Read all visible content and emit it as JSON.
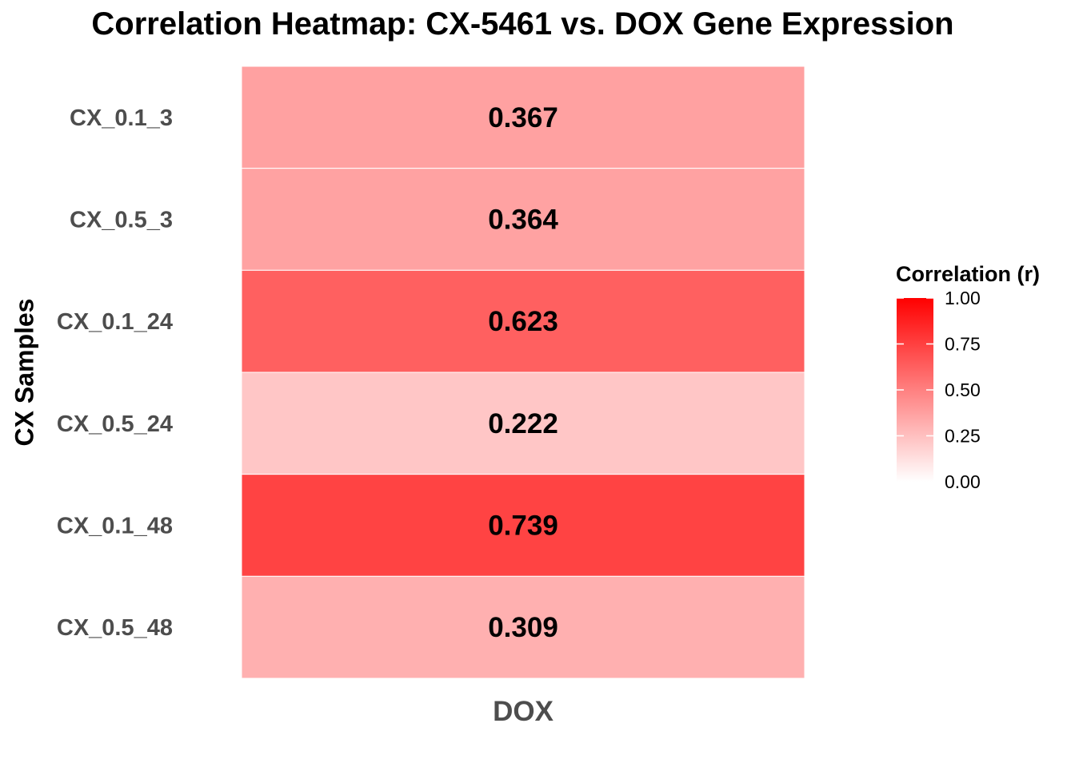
{
  "chart_data": {
    "type": "heatmap",
    "title": "Correlation Heatmap: CX-5461 vs. DOX Gene Expression",
    "xlabel": "",
    "ylabel": "CX Samples",
    "x_categories": [
      "DOX"
    ],
    "y_categories": [
      "CX_0.1_3",
      "CX_0.5_3",
      "CX_0.1_24",
      "CX_0.5_24",
      "CX_0.1_48",
      "CX_0.5_48"
    ],
    "values": [
      0.367,
      0.364,
      0.623,
      0.222,
      0.739,
      0.309
    ],
    "value_labels": [
      "0.367",
      "0.364",
      "0.623",
      "0.222",
      "0.739",
      "0.309"
    ],
    "legend": {
      "title": "Correlation (r)",
      "placement": "right",
      "range": [
        0,
        1
      ],
      "ticks": [
        0,
        0.25,
        0.5,
        0.75,
        1
      ],
      "tick_labels": [
        "0.00",
        "0.25",
        "0.50",
        "0.75",
        "1.00"
      ],
      "low_color": "#ffffff",
      "high_color": "#ff0000"
    },
    "grid": false
  }
}
